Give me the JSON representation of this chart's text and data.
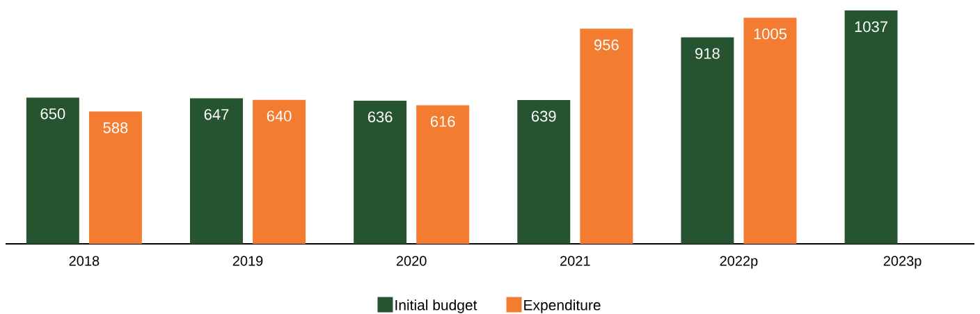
{
  "chart_data": {
    "type": "bar",
    "categories": [
      "2018",
      "2019",
      "2020",
      "2021",
      "2022p",
      "2023p"
    ],
    "series": [
      {
        "name": "Initial budget",
        "color": "#275430",
        "values": [
          650,
          647,
          636,
          639,
          918,
          1037
        ]
      },
      {
        "name": "Expenditure",
        "color": "#f47c30",
        "values": [
          588,
          640,
          616,
          956,
          1005,
          null
        ]
      }
    ],
    "data_labels": true,
    "legend": "bottom",
    "tick_labels": "x"
  }
}
